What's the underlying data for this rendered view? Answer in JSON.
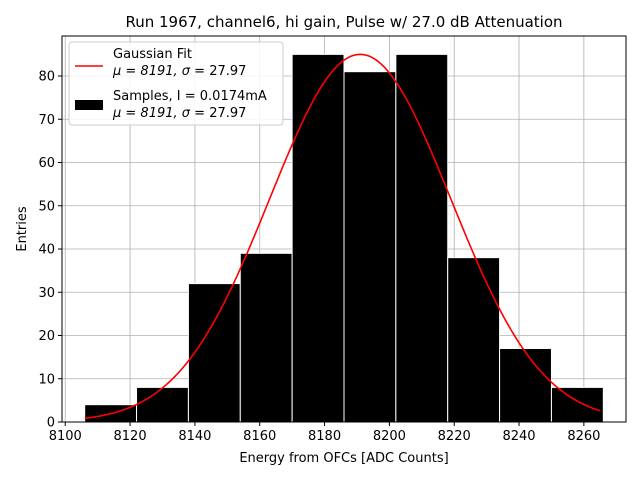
{
  "chart_data": {
    "type": "bar",
    "title": "Run 1967, channel6, hi gain, Pulse w/ 27.0 dB Attenuation",
    "xlabel": "Energy from OFCs [ADC Counts]",
    "ylabel": "Entries",
    "xlim": [
      8099,
      8273
    ],
    "ylim": [
      0,
      89.25
    ],
    "xticks": [
      8100,
      8120,
      8140,
      8160,
      8180,
      8200,
      8220,
      8240,
      8260
    ],
    "yticks": [
      0,
      10,
      20,
      30,
      40,
      50,
      60,
      70,
      80
    ],
    "grid": true,
    "legend_position": "top-left",
    "bin_edges": [
      8106,
      8122,
      8138,
      8154,
      8170,
      8186,
      8202,
      8218,
      8234,
      8250,
      8266
    ],
    "bin_counts": [
      4,
      8,
      32,
      39,
      85,
      81,
      85,
      38,
      17,
      8
    ],
    "fit": {
      "mu": 8191,
      "sigma": 27.97,
      "amplitude": 85,
      "x_range": [
        8106,
        8265
      ]
    },
    "bar_color": "#000000",
    "fit_color": "#ff0000",
    "legend": [
      {
        "kind": "line",
        "line1": "Gaussian Fit",
        "line2_prefix": "μ = 8191, ",
        "line2_sigma": "σ",
        "line2_suffix": " = 27.97",
        "color": "#ff0000"
      },
      {
        "kind": "patch",
        "line1": "Samples, I = 0.0174mA",
        "line2_prefix": "μ = 8191, ",
        "line2_sigma": "σ",
        "line2_suffix": " = 27.97",
        "color": "#000000"
      }
    ]
  }
}
